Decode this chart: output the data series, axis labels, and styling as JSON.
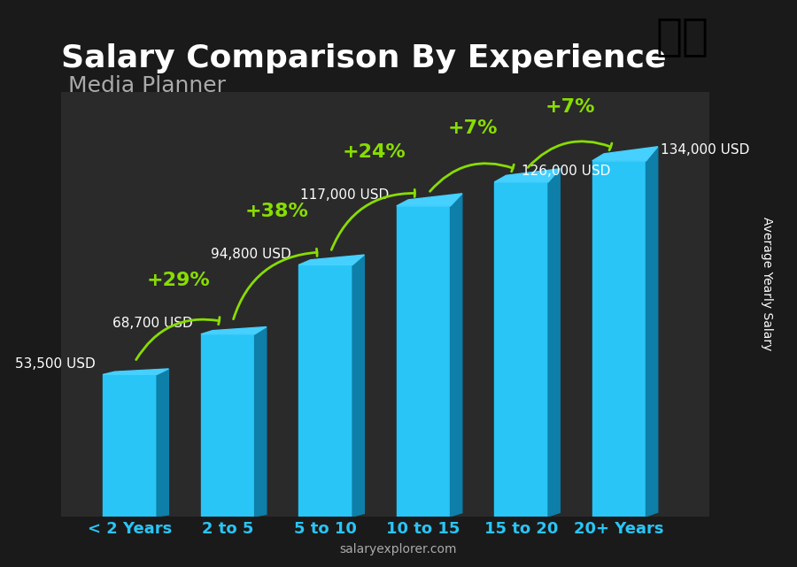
{
  "title": "Salary Comparison By Experience",
  "subtitle": "Media Planner",
  "categories": [
    "< 2 Years",
    "2 to 5",
    "5 to 10",
    "10 to 15",
    "15 to 20",
    "20+ Years"
  ],
  "values": [
    53500,
    68700,
    94800,
    117000,
    126000,
    134000
  ],
  "labels": [
    "53,500 USD",
    "68,700 USD",
    "94,800 USD",
    "117,000 USD",
    "126,000 USD",
    "134,000 USD"
  ],
  "pct_changes": [
    "+29%",
    "+38%",
    "+24%",
    "+7%",
    "+7%"
  ],
  "bar_color_top": "#29c5f6",
  "bar_color_mid": "#1aa8d8",
  "bar_color_side": "#0d7fa8",
  "bg_color": "#1a1a1a",
  "text_color_white": "#ffffff",
  "text_color_cyan": "#29c5f6",
  "text_color_green": "#88dd00",
  "ylabel": "Average Yearly Salary",
  "watermark": "salaryexplorer.com",
  "ylim": [
    0,
    160000
  ],
  "title_fontsize": 26,
  "subtitle_fontsize": 18,
  "label_fontsize": 11,
  "pct_fontsize": 16,
  "cat_fontsize": 13
}
